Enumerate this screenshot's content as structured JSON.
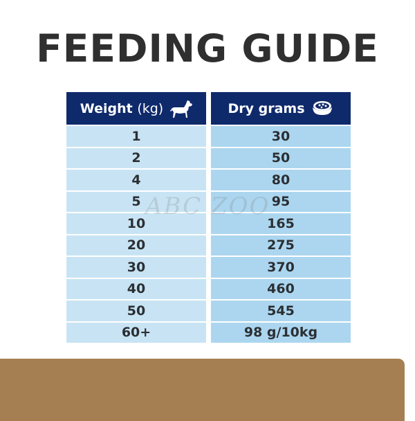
{
  "title": "FEEDING GUIDE",
  "table": {
    "headers": {
      "weight_bold": "Weight",
      "weight_unit": "(kg)",
      "weight_icon": "dog-icon",
      "dry": "Dry grams",
      "dry_icon": "food-bowl-icon"
    },
    "rows": [
      {
        "weight": "1",
        "grams": "30"
      },
      {
        "weight": "2",
        "grams": "50"
      },
      {
        "weight": "4",
        "grams": "80"
      },
      {
        "weight": "5",
        "grams": "95"
      },
      {
        "weight": "10",
        "grams": "165"
      },
      {
        "weight": "20",
        "grams": "275"
      },
      {
        "weight": "30",
        "grams": "370"
      },
      {
        "weight": "40",
        "grams": "460"
      },
      {
        "weight": "50",
        "grams": "545"
      },
      {
        "weight": "60+",
        "grams": "98 g/10kg"
      }
    ]
  },
  "watermark": "ABC ZOO",
  "colors": {
    "header": "#0f2a6b",
    "col1": "#c8e4f4",
    "col2": "#acd6ef",
    "band": "#a57f52",
    "title": "#2f2f2f"
  }
}
